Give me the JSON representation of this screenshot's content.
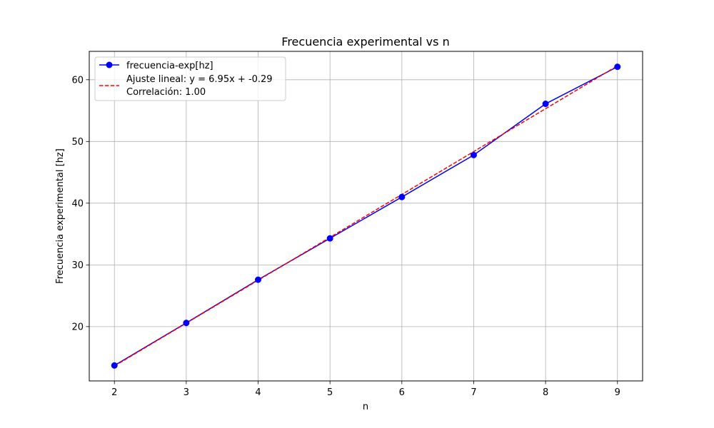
{
  "chart_data": {
    "type": "line",
    "title": "Frecuencia experimental vs n",
    "xlabel": "n",
    "ylabel": "Frecuencia experimental [hz]",
    "x": [
      2,
      3,
      4,
      5,
      6,
      7,
      8,
      9
    ],
    "xlim": [
      1.65,
      9.35
    ],
    "ylim": [
      11.2,
      64.6
    ],
    "x_ticks": [
      2,
      3,
      4,
      5,
      6,
      7,
      8,
      9
    ],
    "y_ticks": [
      20,
      30,
      40,
      50,
      60
    ],
    "grid": true,
    "legend_position": "top-left",
    "series": [
      {
        "name": "frecuencia-exp[hz]",
        "values": [
          13.7,
          20.6,
          27.6,
          34.3,
          41.0,
          47.8,
          56.1,
          62.1
        ],
        "color": "#0000ff",
        "style": "solid",
        "marker": "circle"
      },
      {
        "name": "Ajuste lineal: y = 6.95x + -0.29",
        "name_line2": "Correlación: 1.00",
        "fit": {
          "slope": 6.95,
          "intercept": -0.29
        },
        "color": "#ff0000",
        "style": "dashed"
      }
    ]
  }
}
